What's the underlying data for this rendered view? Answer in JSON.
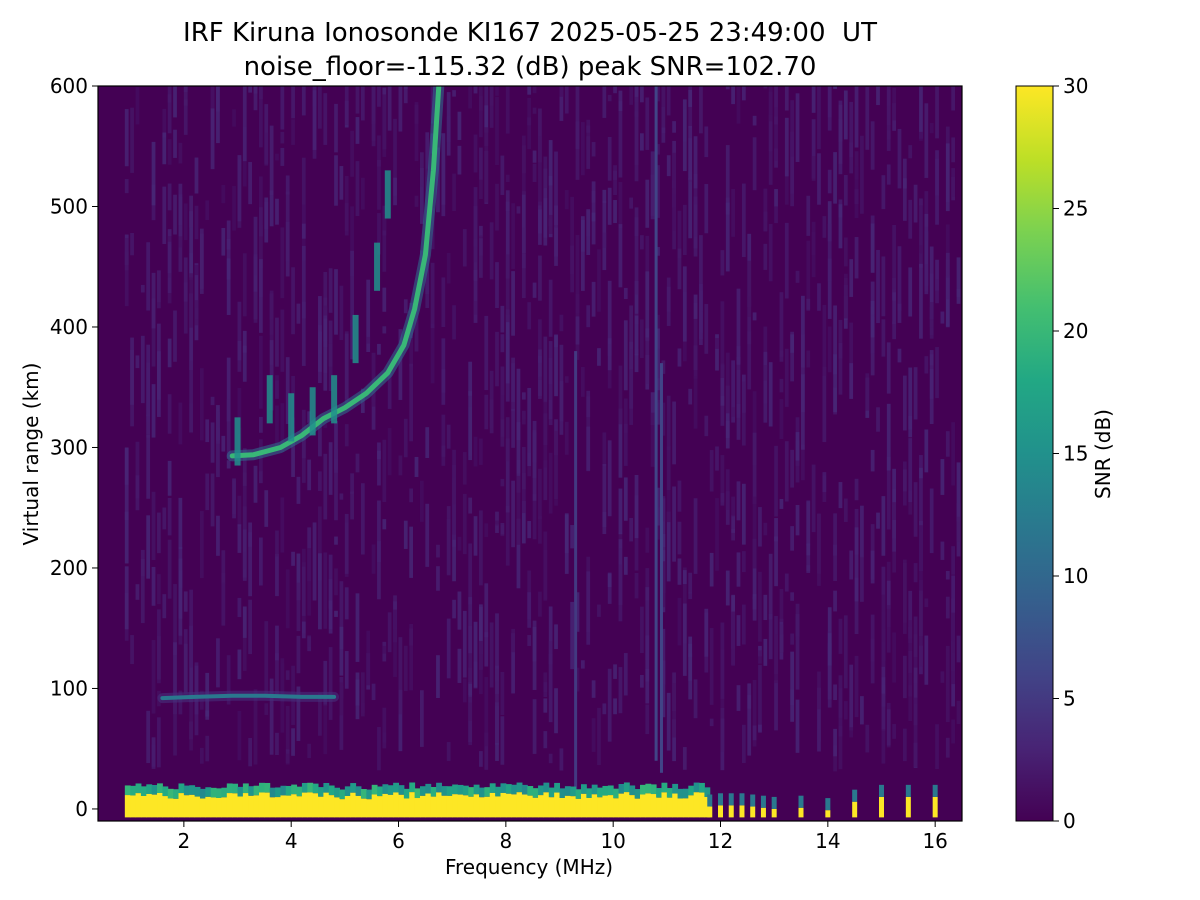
{
  "chart_data": {
    "type": "heatmap",
    "title": "IRF Kiruna Ionosonde KI167 2025-05-25 23:49:00  UT",
    "subtitle": "noise_floor=-115.32 (dB) peak SNR=102.70",
    "xlabel": "Frequency (MHz)",
    "ylabel": "Virtual range (km)",
    "xlim": [
      0.4,
      16.5
    ],
    "ylim": [
      -10,
      600
    ],
    "x_ticks": [
      2,
      4,
      6,
      8,
      10,
      12,
      14,
      16
    ],
    "y_ticks": [
      0,
      100,
      200,
      300,
      400,
      500,
      600
    ],
    "colormap": "viridis",
    "colorbar": {
      "label": "SNR (dB)",
      "range": [
        0,
        30
      ],
      "ticks": [
        0,
        5,
        10,
        15,
        20,
        25,
        30
      ]
    },
    "sounding_frequency_range_MHz": [
      0.9,
      16.5
    ],
    "traces": [
      {
        "kind": "ground_echo",
        "range_km": [
          -7,
          14
        ],
        "frequency_MHz": [
          0.9,
          11.7
        ],
        "snr_db": 30
      },
      {
        "kind": "sporadic_E",
        "range_km": 93,
        "frequency_MHz": [
          1.5,
          4.8
        ],
        "snr_db": 12,
        "points": [
          [
            1.6,
            92
          ],
          [
            2.2,
            93
          ],
          [
            2.9,
            94
          ],
          [
            3.5,
            94
          ],
          [
            4.2,
            93
          ],
          [
            4.8,
            93
          ]
        ]
      },
      {
        "kind": "F_trace",
        "points": [
          [
            2.9,
            293
          ],
          [
            3.3,
            294
          ],
          [
            3.8,
            300
          ],
          [
            4.2,
            310
          ],
          [
            4.6,
            324
          ],
          [
            5.0,
            333
          ],
          [
            5.4,
            345
          ],
          [
            5.8,
            362
          ],
          [
            6.1,
            385
          ],
          [
            6.3,
            415
          ],
          [
            6.5,
            460
          ],
          [
            6.65,
            530
          ],
          [
            6.75,
            600
          ]
        ],
        "snr_db": 20
      },
      {
        "kind": "F_trace_echoes",
        "points": [
          [
            3.0,
            325
          ],
          [
            3.6,
            360
          ],
          [
            4.0,
            345
          ],
          [
            4.4,
            350
          ],
          [
            4.8,
            360
          ],
          [
            5.2,
            410
          ],
          [
            5.6,
            470
          ],
          [
            5.8,
            530
          ]
        ],
        "snr_db": 15
      },
      {
        "kind": "interference_line",
        "frequency_MHz": 10.8,
        "range_km": [
          40,
          600
        ],
        "snr_db": 6
      },
      {
        "kind": "interference_line",
        "frequency_MHz": 10.9,
        "range_km": [
          30,
          370
        ],
        "snr_db": 6
      },
      {
        "kind": "interference_line",
        "frequency_MHz": 9.3,
        "range_km": [
          0,
          380
        ],
        "snr_db": 5
      }
    ],
    "pulsed_columns": {
      "frequency_MHz": [
        11.8,
        12.0,
        12.2,
        12.4,
        12.6,
        12.8,
        13.0,
        13.5,
        14.0,
        14.5,
        15.0,
        15.5,
        16.0
      ],
      "top_range_km": [
        2,
        3,
        3,
        3,
        2,
        1,
        0,
        1,
        -1,
        6,
        10,
        10,
        10
      ]
    }
  }
}
